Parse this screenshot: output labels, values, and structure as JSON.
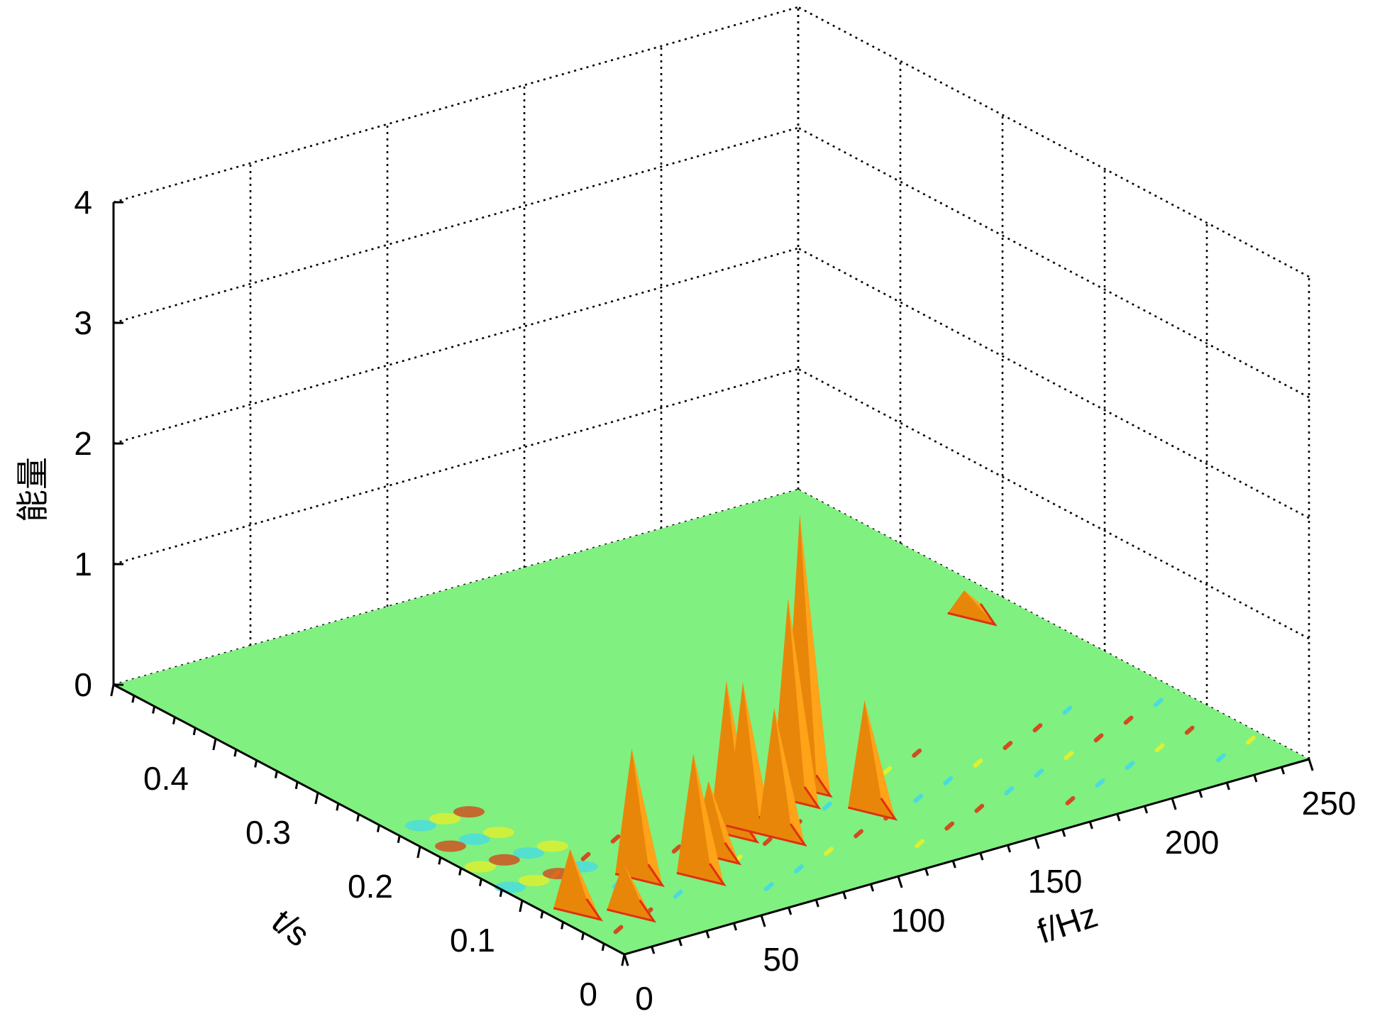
{
  "chart_data": {
    "type": "surface3d",
    "title": "",
    "xlabel": "f/Hz",
    "ylabel": "t/s",
    "zlabel": "能量",
    "xlim": [
      0,
      250
    ],
    "ylim": [
      0,
      0.5
    ],
    "zlim": [
      0,
      4
    ],
    "xticks": [
      "0",
      "50",
      "100",
      "150",
      "200",
      "250"
    ],
    "yticks": [
      "0",
      "0.1",
      "0.2",
      "0.3",
      "0.4"
    ],
    "zticks": [
      "0",
      "1",
      "2",
      "3",
      "4"
    ],
    "grid": true,
    "colors": {
      "base": "#80f080",
      "peak": "#ffa319",
      "peak_shade": "#e8860a",
      "hot": "#e03010",
      "cold": "#40d8f0",
      "warm": "#f0f020"
    },
    "peaks": [
      {
        "f": 10,
        "t": 0.08,
        "energy": 0.45
      },
      {
        "f": 22,
        "t": 0.06,
        "energy": 0.35
      },
      {
        "f": 40,
        "t": 0.1,
        "energy": 1.0
      },
      {
        "f": 55,
        "t": 0.08,
        "energy": 0.95
      },
      {
        "f": 68,
        "t": 0.1,
        "energy": 0.55
      },
      {
        "f": 82,
        "t": 0.12,
        "energy": 1.2
      },
      {
        "f": 88,
        "t": 0.12,
        "energy": 1.15
      },
      {
        "f": 92,
        "t": 0.1,
        "energy": 1.0
      },
      {
        "f": 112,
        "t": 0.14,
        "energy": 1.6
      },
      {
        "f": 120,
        "t": 0.15,
        "energy": 2.2
      },
      {
        "f": 125,
        "t": 0.1,
        "energy": 0.85
      },
      {
        "f": 236,
        "t": 0.3,
        "energy": 0.15
      }
    ]
  }
}
